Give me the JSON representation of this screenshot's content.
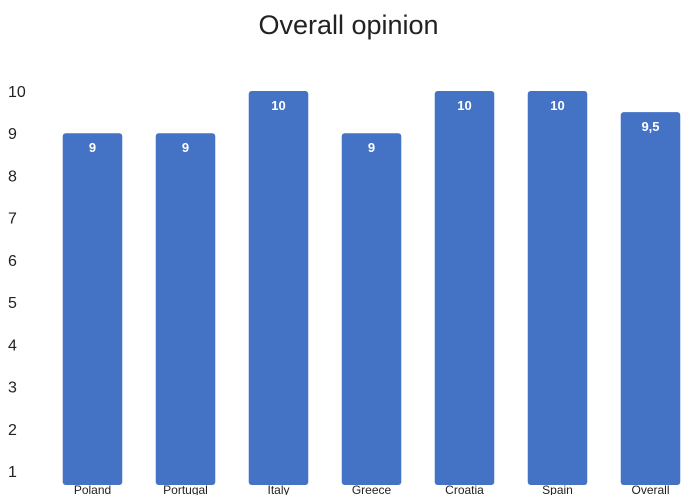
{
  "chart_data": {
    "type": "bar",
    "title": "Overall opinion",
    "xlabel": "",
    "ylabel": "",
    "categories": [
      "Poland",
      "Portugal",
      "Italy",
      "Greece",
      "Croatia",
      "Spain",
      "Overall"
    ],
    "values": [
      9,
      9,
      10,
      9,
      10,
      10,
      9.5
    ],
    "data_labels": [
      "9",
      "9",
      "10",
      "9",
      "10",
      "10",
      "9,5"
    ],
    "yticks": [
      1,
      2,
      3,
      4,
      5,
      6,
      7,
      8,
      9,
      10
    ],
    "ylim": [
      1,
      10
    ],
    "grid": false,
    "legend": "none",
    "bar_color": "#4472C4"
  }
}
